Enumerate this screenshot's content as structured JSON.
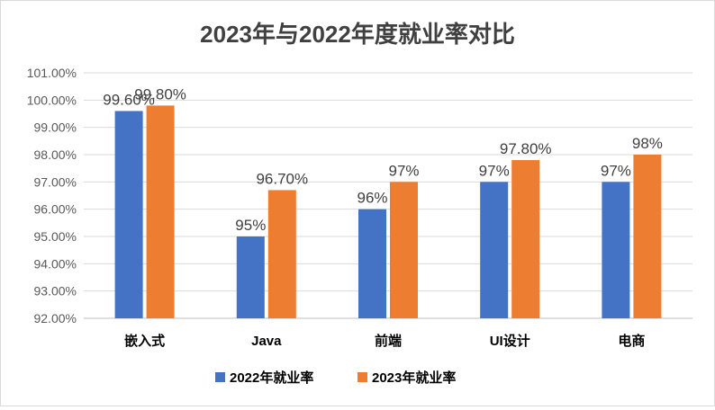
{
  "chart_data": {
    "type": "bar",
    "title": "2023年与2022年度就业率对比",
    "categories": [
      "嵌入式",
      "Java",
      "前端",
      "UI设计",
      "电商"
    ],
    "series": [
      {
        "name": "2022年就业率",
        "color": "#4472c4",
        "values": [
          99.6,
          95,
          96,
          97,
          97
        ],
        "labels": [
          "99.60%",
          "95%",
          "96%",
          "97%",
          "97%"
        ]
      },
      {
        "name": "2023年就业率",
        "color": "#ed7d31",
        "values": [
          99.8,
          96.7,
          97,
          97.8,
          98
        ],
        "labels": [
          "99.80%",
          "96.70%",
          "97%",
          "97.80%",
          "98%"
        ]
      }
    ],
    "ylim": [
      92,
      101
    ],
    "ytick_step": 1,
    "ytick_labels": [
      "92.00%",
      "93.00%",
      "94.00%",
      "95.00%",
      "96.00%",
      "97.00%",
      "98.00%",
      "99.00%",
      "100.00%",
      "101.00%"
    ],
    "xlabel": "",
    "ylabel": "",
    "grid": true,
    "legend": "bottom"
  }
}
